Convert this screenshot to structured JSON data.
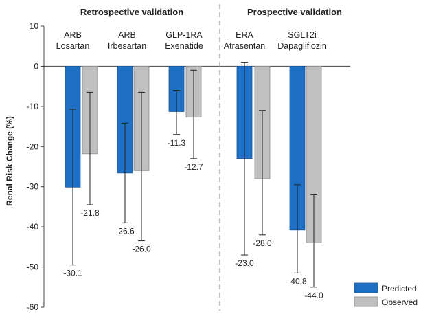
{
  "chart_data": {
    "type": "bar",
    "ylabel": "Renal Risk Change (%)",
    "ylim": [
      -60,
      10
    ],
    "yticks": [
      10,
      0,
      -10,
      -20,
      -30,
      -40,
      -50,
      -60
    ],
    "group_titles": [
      "Retrospective validation",
      "Prospective validation"
    ],
    "categories": [
      {
        "line1": "ARB",
        "line2": "Losartan",
        "group": 0
      },
      {
        "line1": "ARB",
        "line2": "Irbesartan",
        "group": 0
      },
      {
        "line1": "GLP-1RA",
        "line2": "Exenatide",
        "group": 0
      },
      {
        "line1": "ERA",
        "line2": "Atrasentan",
        "group": 1
      },
      {
        "line1": "SGLT2i",
        "line2": "Dapagliflozin",
        "group": 1
      }
    ],
    "series": [
      {
        "name": "Predicted",
        "color": "#1f6fc4",
        "values": [
          -30.1,
          -26.6,
          -11.3,
          -23.0,
          -40.8
        ],
        "labels": [
          "-30.1",
          "-26.6",
          "-11.3",
          "-23.0",
          "-40.8"
        ],
        "err_low": [
          -49.5,
          -39.0,
          -17.0,
          -47.0,
          -51.5
        ],
        "err_high": [
          -10.7,
          -14.2,
          -6.0,
          1.0,
          -29.5
        ]
      },
      {
        "name": "Observed",
        "color": "#c0c0c0",
        "values": [
          -21.8,
          -26.0,
          -12.7,
          -28.0,
          -44.0
        ],
        "labels": [
          "-21.8",
          "-26.0",
          "-12.7",
          "-28.0",
          "-44.0"
        ],
        "err_low": [
          -34.5,
          -43.5,
          -23.0,
          -42.0,
          -55.0
        ],
        "err_high": [
          -6.5,
          -6.5,
          -1.0,
          -11.0,
          -32.0
        ]
      }
    ],
    "legend_position": "bottom-right",
    "grid": false
  }
}
